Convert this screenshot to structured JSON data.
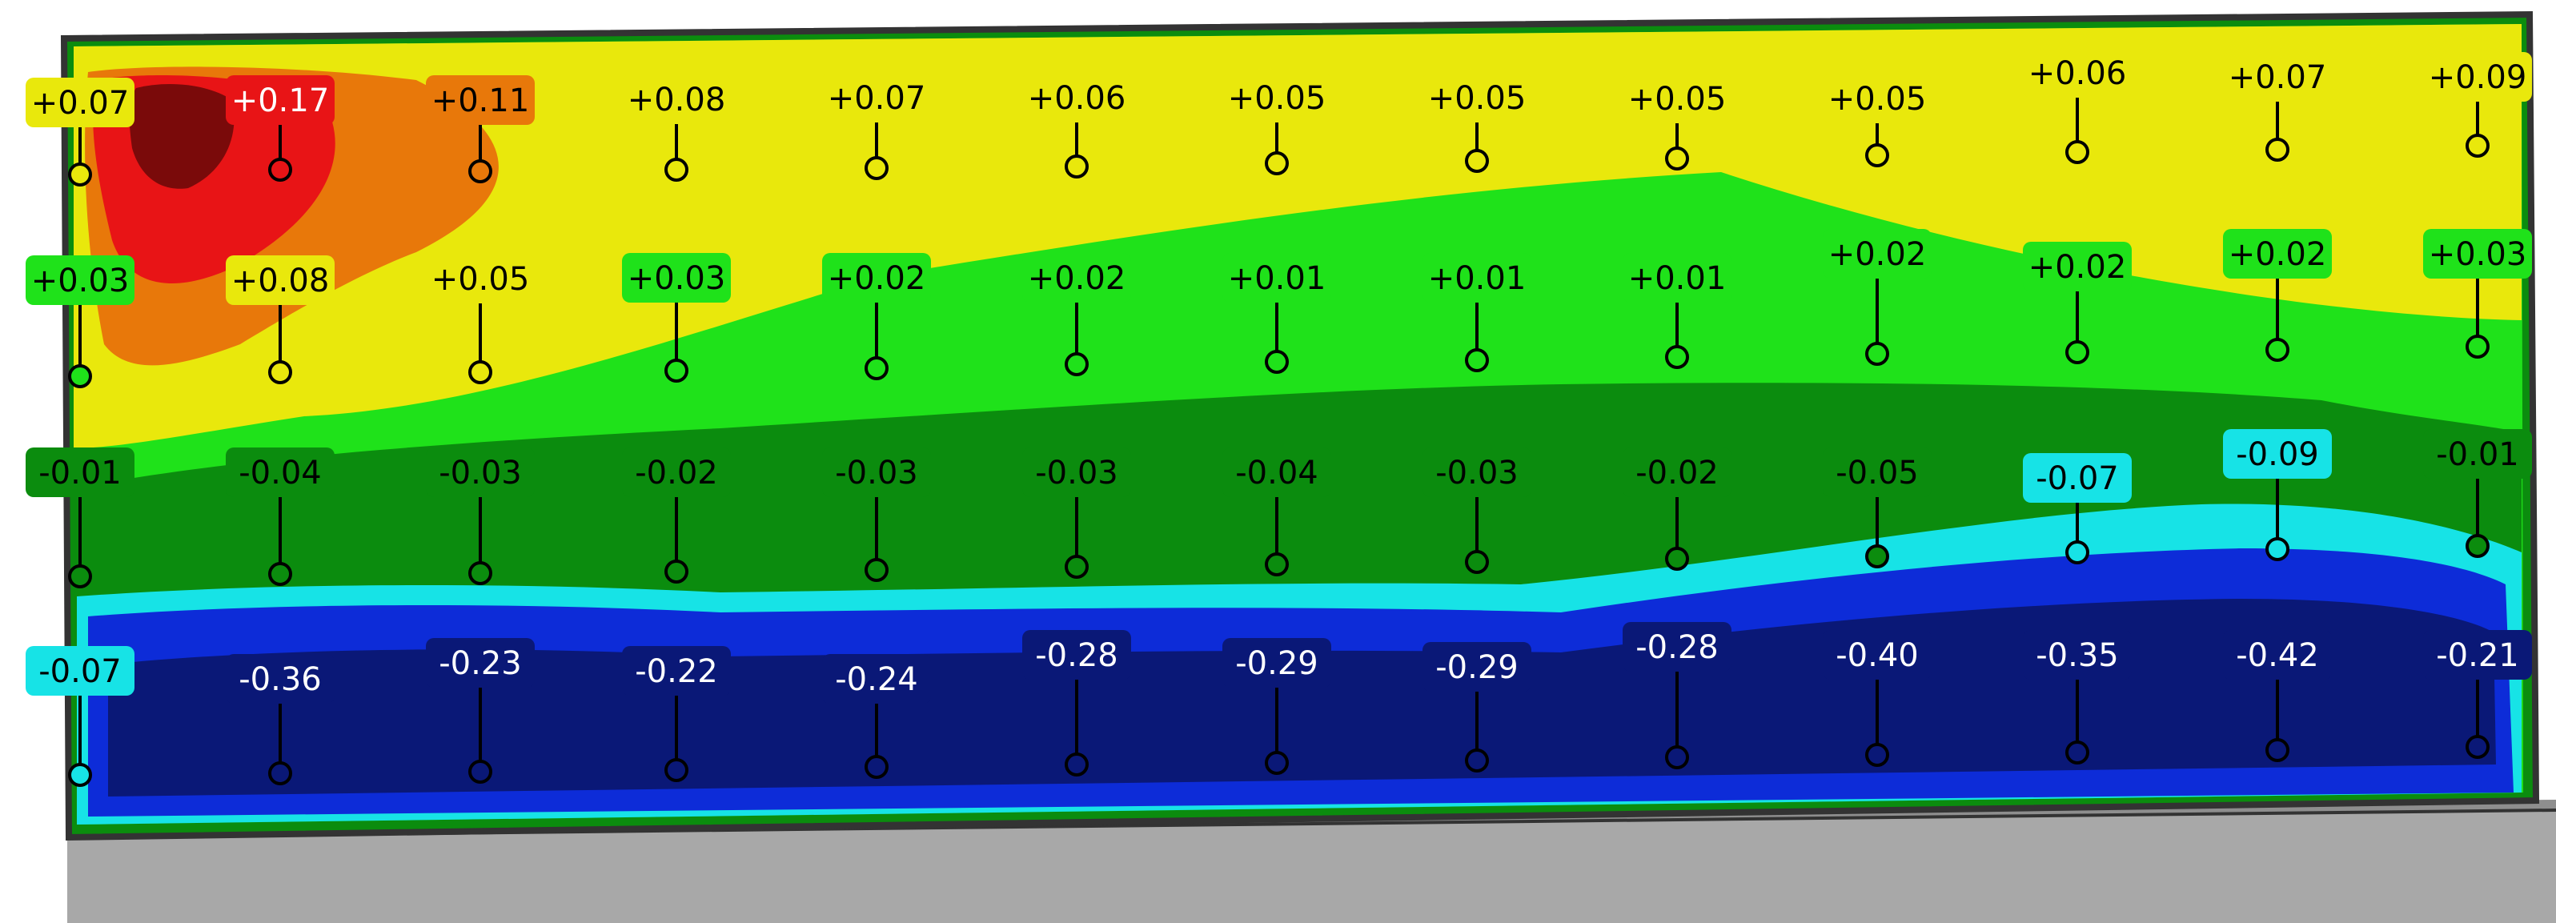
{
  "colors": {
    "dark_red": "#7a0a0a",
    "red": "#e81416",
    "orange": "#e8780a",
    "yellow": "#e9e80c",
    "light_green": "#1fe21a",
    "dark_green": "#0b8c0e",
    "cyan": "#17e3e6",
    "blue": "#0d2cd8",
    "navy": "#0a1877",
    "base_gray": "#a8a8a8"
  },
  "band_colors": {
    "r0": "yellow",
    "r1": "light_green",
    "r2": "dark_green",
    "r3": "navy"
  },
  "grid": {
    "rows": [
      [
        "+0.07",
        "+0.17",
        "+0.11",
        "+0.08",
        "+0.07",
        "+0.06",
        "+0.05",
        "+0.05",
        "+0.05",
        "+0.05",
        "+0.06",
        "+0.07",
        "+0.09"
      ],
      [
        "+0.03",
        "+0.08",
        "+0.05",
        "+0.03",
        "+0.02",
        "+0.02",
        "+0.01",
        "+0.01",
        "+0.01",
        "+0.02",
        "+0.02",
        "+0.02",
        "+0.03"
      ],
      [
        "-0.01",
        "-0.04",
        "-0.03",
        "-0.02",
        "-0.03",
        "-0.03",
        "-0.04",
        "-0.03",
        "-0.02",
        "-0.05",
        "-0.07",
        "-0.09",
        "-0.01"
      ],
      [
        "-0.07",
        "-0.36",
        "-0.23",
        "-0.22",
        "-0.24",
        "-0.28",
        "-0.29",
        "-0.29",
        "-0.28",
        "-0.40",
        "-0.35",
        "-0.42",
        "-0.21"
      ]
    ],
    "label_colors": [
      [
        "yellow",
        "red",
        "orange",
        "yellow",
        "yellow",
        "yellow",
        "yellow",
        "yellow",
        "yellow",
        "yellow",
        "yellow",
        "yellow",
        "yellow"
      ],
      [
        "light_green",
        "yellow",
        "yellow",
        "light_green",
        "light_green",
        "light_green",
        "light_green",
        "light_green",
        "light_green",
        "light_green",
        "light_green",
        "light_green",
        "light_green"
      ],
      [
        "dark_green",
        "dark_green",
        "dark_green",
        "dark_green",
        "dark_green",
        "dark_green",
        "dark_green",
        "dark_green",
        "dark_green",
        "dark_green",
        "cyan",
        "cyan",
        "dark_green"
      ],
      [
        "cyan",
        "navy",
        "navy",
        "navy",
        "navy",
        "navy",
        "navy",
        "navy",
        "navy",
        "navy",
        "navy",
        "navy",
        "navy"
      ]
    ]
  }
}
